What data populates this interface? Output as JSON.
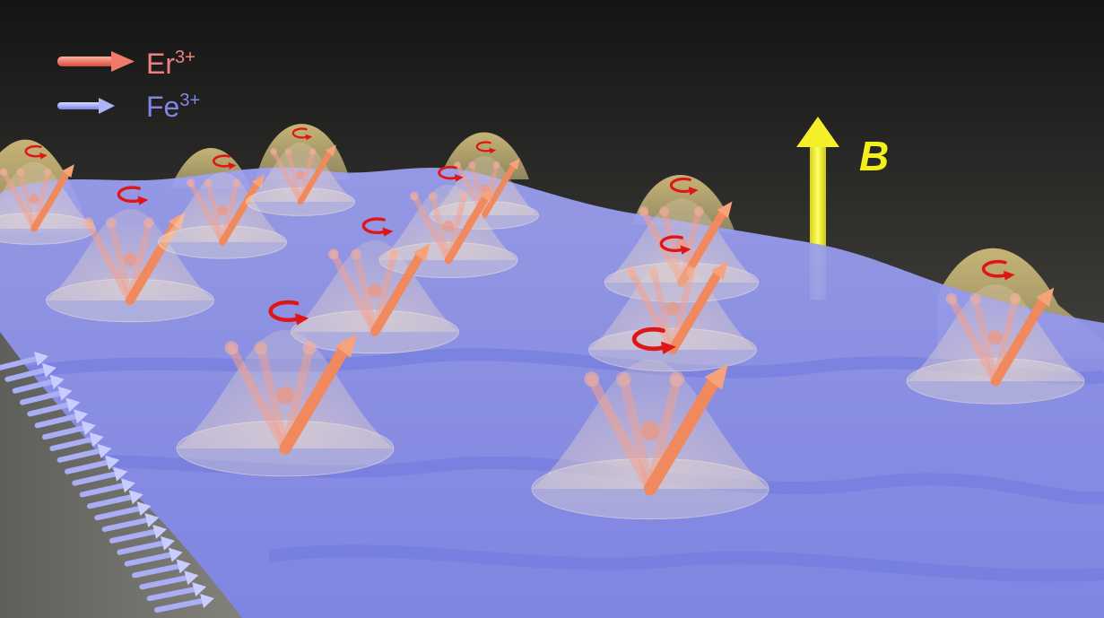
{
  "legend": {
    "items": [
      {
        "ion": "Er",
        "charge": "3+",
        "color": "#f08080"
      },
      {
        "ion": "Fe",
        "charge": "3+",
        "color": "#7f86e6"
      }
    ]
  },
  "field": {
    "label": "B",
    "color": "#f2ef1a"
  },
  "colors": {
    "background_top": "#171717",
    "background_bottom": "#6a6a62",
    "magnon_surface": "#8c91f0",
    "peaks": "#b3a56b",
    "er_spin": "#f08a5e",
    "precession": "#e01515"
  }
}
